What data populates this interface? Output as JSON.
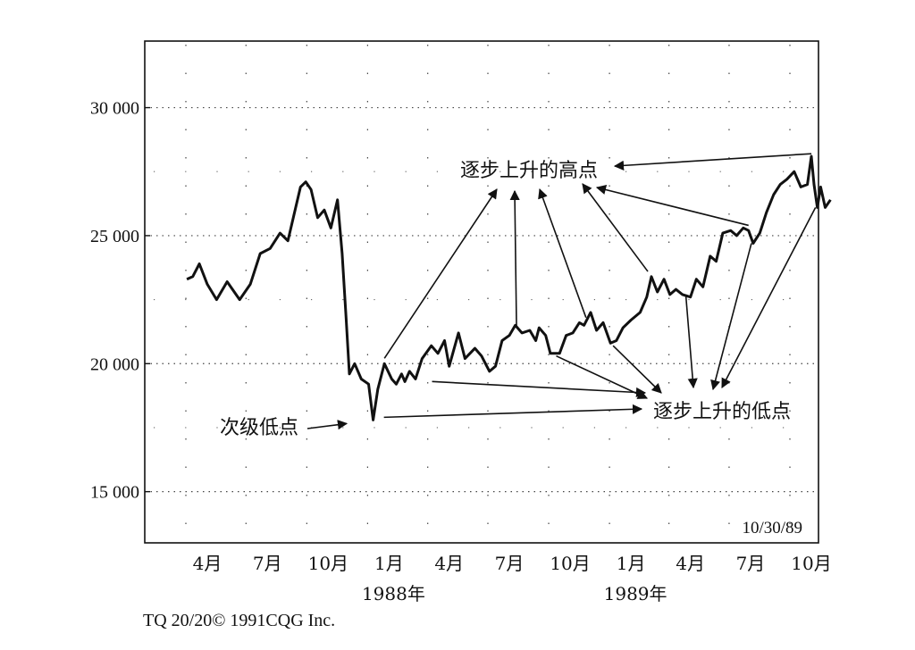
{
  "chart_data": {
    "type": "line",
    "title": "",
    "xlabel": "",
    "ylabel": "",
    "ylim": [
      13000,
      32600
    ],
    "yticks": [
      15000,
      20000,
      25000,
      30000
    ],
    "ytick_labels": [
      "15 000",
      "20 000",
      "25 000",
      "30 000"
    ],
    "grid": "dotted",
    "x_tick_labels": [
      "4月",
      "7月",
      "10月",
      "1月",
      "4月",
      "7月",
      "10月",
      "1月",
      "4月",
      "7月",
      "10月"
    ],
    "year_labels": [
      "1988年",
      "1989年"
    ],
    "date_stamp": "10/30/89",
    "series": [
      {
        "points": [
          [
            "1987-03-01",
            23300
          ],
          [
            "1987-03-10",
            23400
          ],
          [
            "1987-03-20",
            23900
          ],
          [
            "1987-04-01",
            23100
          ],
          [
            "1987-04-15",
            22500
          ],
          [
            "1987-05-01",
            23200
          ],
          [
            "1987-05-20",
            22500
          ],
          [
            "1987-06-05",
            23100
          ],
          [
            "1987-06-20",
            24300
          ],
          [
            "1987-07-05",
            24500
          ],
          [
            "1987-07-20",
            25100
          ],
          [
            "1987-08-01",
            24800
          ],
          [
            "1987-08-10",
            25800
          ],
          [
            "1987-08-20",
            26900
          ],
          [
            "1987-08-28",
            27100
          ],
          [
            "1987-09-05",
            26800
          ],
          [
            "1987-09-15",
            25700
          ],
          [
            "1987-09-25",
            26000
          ],
          [
            "1987-10-05",
            25300
          ],
          [
            "1987-10-15",
            26400
          ],
          [
            "1987-10-22",
            24300
          ],
          [
            "1987-10-28",
            21800
          ],
          [
            "1987-11-02",
            19600
          ],
          [
            "1987-11-10",
            20000
          ],
          [
            "1987-11-20",
            19400
          ],
          [
            "1987-12-01",
            19200
          ],
          [
            "1987-12-08",
            17800
          ],
          [
            "1987-12-15",
            19000
          ],
          [
            "1987-12-25",
            20000
          ],
          [
            "1988-01-05",
            19400
          ],
          [
            "1988-01-12",
            19200
          ],
          [
            "1988-01-20",
            19600
          ],
          [
            "1988-01-25",
            19300
          ],
          [
            "1988-02-01",
            19700
          ],
          [
            "1988-02-10",
            19400
          ],
          [
            "1988-02-20",
            20200
          ],
          [
            "1988-03-05",
            20700
          ],
          [
            "1988-03-15",
            20400
          ],
          [
            "1988-03-25",
            20900
          ],
          [
            "1988-04-01",
            19900
          ],
          [
            "1988-04-15",
            21200
          ],
          [
            "1988-04-25",
            20200
          ],
          [
            "1988-05-10",
            20600
          ],
          [
            "1988-05-20",
            20300
          ],
          [
            "1988-06-01",
            19700
          ],
          [
            "1988-06-10",
            19900
          ],
          [
            "1988-06-20",
            20900
          ],
          [
            "1988-07-01",
            21100
          ],
          [
            "1988-07-10",
            21500
          ],
          [
            "1988-07-20",
            21200
          ],
          [
            "1988-08-01",
            21300
          ],
          [
            "1988-08-10",
            20900
          ],
          [
            "1988-08-15",
            21400
          ],
          [
            "1988-08-25",
            21100
          ],
          [
            "1988-09-01",
            20400
          ],
          [
            "1988-09-15",
            20400
          ],
          [
            "1988-09-25",
            21100
          ],
          [
            "1988-10-05",
            21200
          ],
          [
            "1988-10-15",
            21600
          ],
          [
            "1988-10-22",
            21500
          ],
          [
            "1988-11-01",
            22000
          ],
          [
            "1988-11-10",
            21300
          ],
          [
            "1988-11-20",
            21600
          ],
          [
            "1988-12-01",
            20800
          ],
          [
            "1988-12-10",
            20900
          ],
          [
            "1988-12-20",
            21400
          ],
          [
            "1989-01-01",
            21700
          ],
          [
            "1989-01-15",
            22000
          ],
          [
            "1989-01-25",
            22600
          ],
          [
            "1989-02-01",
            23400
          ],
          [
            "1989-02-10",
            22800
          ],
          [
            "1989-02-20",
            23300
          ],
          [
            "1989-03-01",
            22700
          ],
          [
            "1989-03-10",
            22900
          ],
          [
            "1989-03-20",
            22700
          ],
          [
            "1989-04-01",
            22600
          ],
          [
            "1989-04-10",
            23300
          ],
          [
            "1989-04-20",
            23000
          ],
          [
            "1989-05-01",
            24200
          ],
          [
            "1989-05-10",
            24000
          ],
          [
            "1989-05-20",
            25100
          ],
          [
            "1989-06-01",
            25200
          ],
          [
            "1989-06-10",
            25000
          ],
          [
            "1989-06-20",
            25300
          ],
          [
            "1989-06-28",
            25200
          ],
          [
            "1989-07-05",
            24700
          ],
          [
            "1989-07-15",
            25100
          ],
          [
            "1989-07-25",
            25900
          ],
          [
            "1989-08-05",
            26600
          ],
          [
            "1989-08-15",
            27000
          ],
          [
            "1989-08-25",
            27200
          ],
          [
            "1989-09-05",
            27500
          ],
          [
            "1989-09-15",
            26900
          ],
          [
            "1989-09-25",
            27000
          ],
          [
            "1989-10-01",
            28100
          ],
          [
            "1989-10-05",
            27000
          ],
          [
            "1989-10-10",
            26100
          ],
          [
            "1989-10-15",
            26900
          ],
          [
            "1989-10-22",
            26100
          ],
          [
            "1989-10-30",
            26400
          ]
        ]
      }
    ],
    "annotations": [
      {
        "text": "逐步上升的高点",
        "targets": [
          [
            "1987-12-25",
            20000
          ],
          [
            "1988-07-20",
            21200
          ],
          [
            "1988-10-25",
            21600
          ],
          [
            "1989-02-01",
            23400
          ],
          [
            "1989-06-28",
            25200
          ],
          [
            "1989-10-01",
            28100
          ]
        ]
      },
      {
        "text": "逐步上升的低点",
        "targets": [
          [
            "1988-01-12",
            19200
          ],
          [
            "1988-09-10",
            20400
          ],
          [
            "1988-12-05",
            20800
          ],
          [
            "1989-03-25",
            22700
          ],
          [
            "1989-07-05",
            24700
          ],
          [
            "1989-10-10",
            26100
          ]
        ]
      },
      {
        "text": "次级低点",
        "targets": [
          [
            "1987-12-08",
            17800
          ]
        ]
      }
    ]
  },
  "footer": {
    "credit": "TQ 20/20© 1991CQG Inc."
  }
}
